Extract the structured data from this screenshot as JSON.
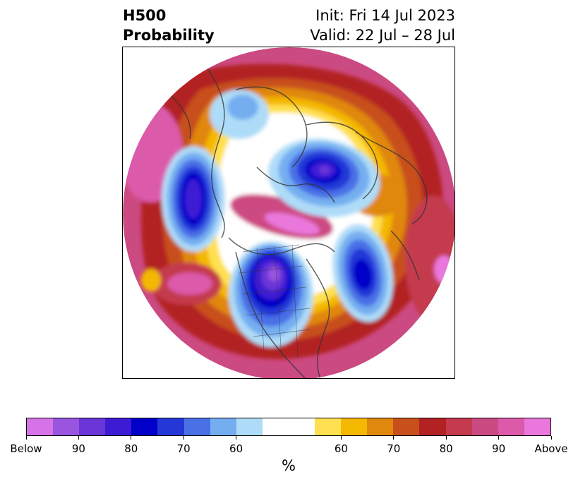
{
  "title": {
    "left_line1": "H500",
    "left_line2": "Probability",
    "right_line1": "Init: Fri 14 Jul 2023",
    "right_line2": "Valid: 22 Jul – 28 Jul"
  },
  "colorbar": {
    "colors": [
      "#d673e8",
      "#9a55e0",
      "#6a36d8",
      "#3c1bd4",
      "#0000c8",
      "#2438d8",
      "#4a70e6",
      "#74aef0",
      "#aedcf8",
      "#ffffff",
      "#ffffff",
      "#ffe050",
      "#f4b800",
      "#e0880c",
      "#c8501c",
      "#b22222",
      "#c43a4e",
      "#cc4a82",
      "#dc5aaa",
      "#ea78dc"
    ],
    "ticks": [
      {
        "label": "Below",
        "index": 0
      },
      {
        "label": "90",
        "index": 2
      },
      {
        "label": "80",
        "index": 4
      },
      {
        "label": "70",
        "index": 6
      },
      {
        "label": "60",
        "index": 8
      },
      {
        "label": "60",
        "index": 12
      },
      {
        "label": "70",
        "index": 14
      },
      {
        "label": "80",
        "index": 16
      },
      {
        "label": "90",
        "index": 18
      },
      {
        "label": "Above",
        "index": 20
      }
    ],
    "unit": "%"
  }
}
